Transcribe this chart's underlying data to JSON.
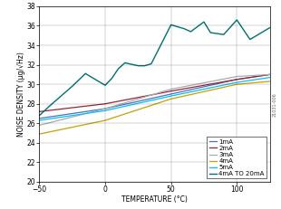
{
  "xlabel": "TEMPERATURE (°C)",
  "ylabel": "NOISE DENSITY (μg/√Hz)",
  "xlim": [
    -50,
    125
  ],
  "ylim": [
    20,
    38
  ],
  "xticks": [
    -50,
    0,
    50,
    100
  ],
  "yticks": [
    20,
    22,
    24,
    26,
    28,
    30,
    32,
    34,
    36,
    38
  ],
  "series": [
    {
      "label": "1mA",
      "color": "#4472C4",
      "linewidth": 0.9,
      "x": [
        -50,
        0,
        50,
        100,
        125
      ],
      "y": [
        26.5,
        27.5,
        29.0,
        30.5,
        31.0
      ]
    },
    {
      "label": "2mA",
      "color": "#9B2335",
      "linewidth": 0.9,
      "x": [
        -50,
        0,
        50,
        100,
        125
      ],
      "y": [
        27.2,
        28.0,
        29.3,
        30.5,
        31.0
      ]
    },
    {
      "label": "3mA",
      "color": "#AAAAAA",
      "linewidth": 0.9,
      "x": [
        -50,
        0,
        50,
        100,
        125
      ],
      "y": [
        25.8,
        27.5,
        29.5,
        30.8,
        31.0
      ]
    },
    {
      "label": "4mA",
      "color": "#C8A000",
      "linewidth": 0.9,
      "x": [
        -50,
        0,
        50,
        100,
        125
      ],
      "y": [
        24.9,
        26.3,
        28.5,
        30.0,
        30.3
      ]
    },
    {
      "label": "5mA",
      "color": "#00BFFF",
      "linewidth": 0.9,
      "x": [
        -50,
        0,
        50,
        100,
        125
      ],
      "y": [
        26.3,
        27.3,
        28.8,
        30.2,
        30.7
      ]
    },
    {
      "label": "4mA TO 20mA",
      "color": "#007070",
      "linewidth": 1.0,
      "x": [
        -50,
        -42,
        -25,
        -15,
        0,
        5,
        10,
        15,
        25,
        30,
        35,
        50,
        55,
        60,
        65,
        75,
        80,
        90,
        100,
        110,
        125
      ],
      "y": [
        26.8,
        27.8,
        29.8,
        31.1,
        29.9,
        30.6,
        31.6,
        32.2,
        31.9,
        31.9,
        32.1,
        36.1,
        35.9,
        35.7,
        35.4,
        36.4,
        35.3,
        35.1,
        36.6,
        34.6,
        35.8
      ]
    }
  ],
  "bg_color": "#ffffff",
  "grid_color": "#000000",
  "axis_label_fontsize": 5.5,
  "tick_fontsize": 5.5,
  "legend_fontsize": 5.0,
  "fig_label": "21031-006"
}
